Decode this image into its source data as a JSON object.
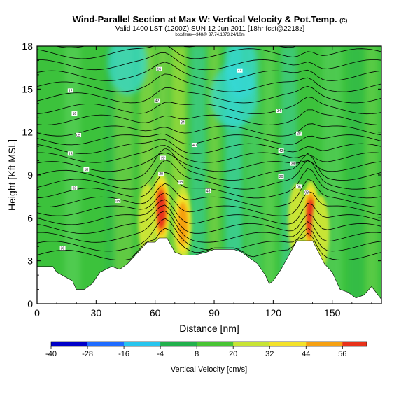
{
  "header": {
    "title": "Wind-Parallel Section at Max W: Vertical Velocity & Pot.Temp.",
    "title_tag": "(C)",
    "subtitle": "Valid 1400 LST (1200Z) SUN 12 Jun 2011 [18hr fcst@2218z]",
    "subsubtitle": "box/fmax=-348@ 37.74,1073.24/10m"
  },
  "chart_data": {
    "type": "heatmap",
    "title": "Wind-Parallel Section at Max W: Vertical Velocity & Pot.Temp.",
    "xlabel": "Distance [nm]",
    "ylabel": "Height [Kft MSL]",
    "xlim": [
      0,
      175
    ],
    "ylim": [
      0,
      18
    ],
    "xticks": [
      "0",
      "30",
      "60",
      "90",
      "120",
      "150"
    ],
    "yticks": [
      "0",
      "3",
      "6",
      "9",
      "12",
      "15",
      "18"
    ],
    "colorbar": {
      "label": "Vertical Velocity [cm/s]",
      "range": [
        -40,
        64
      ],
      "ticks": [
        "-40",
        "-28",
        "-16",
        "-4",
        "8",
        "20",
        "32",
        "44",
        "56"
      ]
    },
    "terrain_profile": {
      "x": [
        0,
        8,
        10,
        18,
        20,
        24,
        28,
        32,
        38,
        42,
        46,
        50,
        54,
        56,
        60,
        62,
        66,
        70,
        74,
        80,
        86,
        90,
        96,
        100,
        104,
        108,
        112,
        116,
        118,
        120,
        124,
        128,
        132,
        134,
        136,
        140,
        146,
        150,
        154,
        158,
        162,
        166,
        170,
        175
      ],
      "height": [
        2.6,
        2.6,
        2.2,
        1.6,
        1.0,
        1.0,
        1.4,
        2.2,
        2.6,
        2.4,
        2.8,
        3.4,
        4.0,
        4.3,
        4.3,
        4.6,
        4.6,
        3.6,
        3.4,
        3.4,
        3.6,
        3.8,
        3.8,
        3.8,
        3.6,
        3.2,
        2.8,
        2.0,
        1.4,
        1.6,
        2.4,
        3.4,
        4.4,
        4.4,
        4.4,
        4.4,
        2.8,
        2.2,
        1.0,
        0.8,
        0.4,
        0.6,
        1.2,
        0.3
      ]
    },
    "updraft_cores": [
      {
        "x": 63,
        "z": 6.6,
        "w": 60
      },
      {
        "x": 74,
        "z": 5.6,
        "w": 44
      },
      {
        "x": 56,
        "z": 5.8,
        "w": 30
      },
      {
        "x": 139,
        "z": 6.0,
        "w": 56
      },
      {
        "x": 132,
        "z": 5.8,
        "w": 30
      },
      {
        "x": 144,
        "z": 5.0,
        "w": 28
      }
    ],
    "isentropes": {
      "count": 24,
      "labels": [
        {
          "x": 13,
          "z": 3.9,
          "text": "30"
        },
        {
          "x": 41,
          "z": 7.2,
          "text": "08"
        },
        {
          "x": 19,
          "z": 8.1,
          "text": "02"
        },
        {
          "x": 25,
          "z": 9.4,
          "text": "10"
        },
        {
          "x": 17,
          "z": 10.5,
          "text": "15"
        },
        {
          "x": 21,
          "z": 11.8,
          "text": "05"
        },
        {
          "x": 19,
          "z": 13.3,
          "text": "16"
        },
        {
          "x": 17,
          "z": 14.9,
          "text": "12"
        },
        {
          "x": 62,
          "z": 16.4,
          "text": "16"
        },
        {
          "x": 103,
          "z": 16.3,
          "text": "44"
        },
        {
          "x": 61,
          "z": 14.2,
          "text": "42"
        },
        {
          "x": 74,
          "z": 12.7,
          "text": "34"
        },
        {
          "x": 80,
          "z": 11.1,
          "text": "40"
        },
        {
          "x": 64,
          "z": 10.2,
          "text": "22"
        },
        {
          "x": 63,
          "z": 9.1,
          "text": "20"
        },
        {
          "x": 73,
          "z": 8.5,
          "text": "08"
        },
        {
          "x": 87,
          "z": 7.9,
          "text": "45"
        },
        {
          "x": 123,
          "z": 13.5,
          "text": "34"
        },
        {
          "x": 133,
          "z": 11.9,
          "text": "28"
        },
        {
          "x": 124,
          "z": 10.7,
          "text": "42"
        },
        {
          "x": 130,
          "z": 9.8,
          "text": "38"
        },
        {
          "x": 124,
          "z": 8.9,
          "text": "20"
        },
        {
          "x": 133,
          "z": 8.2,
          "text": "06"
        },
        {
          "x": 137,
          "z": 7.8,
          "text": "08"
        }
      ]
    }
  }
}
